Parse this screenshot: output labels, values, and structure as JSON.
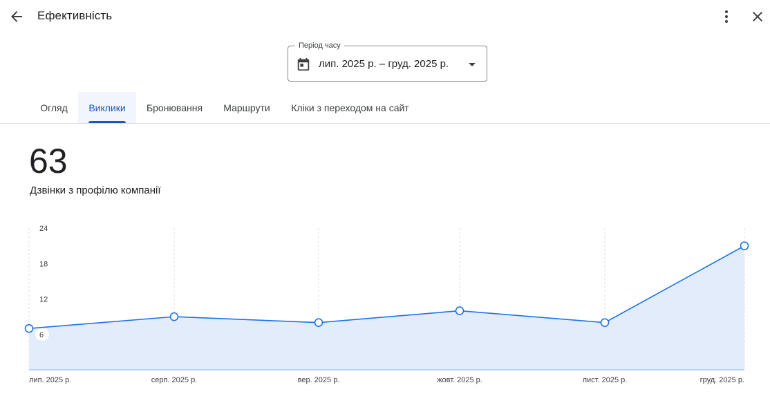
{
  "header": {
    "title": "Ефективність",
    "back_icon": "arrow-back-icon",
    "more_icon": "more-vert-icon",
    "close_icon": "close-icon"
  },
  "period": {
    "label": "Період часу",
    "value": "лип. 2025 р. – груд. 2025 р.",
    "calendar_icon": "calendar-icon",
    "caret_icon": "dropdown-arrow-icon"
  },
  "tabs": [
    {
      "label": "Огляд",
      "active": false
    },
    {
      "label": "Виклики",
      "active": true
    },
    {
      "label": "Бронювання",
      "active": false
    },
    {
      "label": "Маршрути",
      "active": false
    },
    {
      "label": "Кліки з переходом на сайт",
      "active": false
    }
  ],
  "metric": {
    "value": "63",
    "label": "Дзвінки з профілю компанії"
  },
  "colors": {
    "accent": "#1a73e8",
    "active_tab": "#1a57b8",
    "area_fill": "#e3ecfb"
  },
  "chart_data": {
    "type": "area",
    "categories": [
      "лип. 2025 р.",
      "серп. 2025 р.",
      "вер. 2025 р.",
      "жовт. 2025 р.",
      "лист. 2025 р.",
      "груд. 2025 р."
    ],
    "values": [
      7,
      9,
      8,
      10,
      8,
      21
    ],
    "yticks": [
      6,
      12,
      18,
      24
    ],
    "ylim": [
      0,
      24
    ],
    "grid": "vertical-dashed",
    "markers": true
  }
}
